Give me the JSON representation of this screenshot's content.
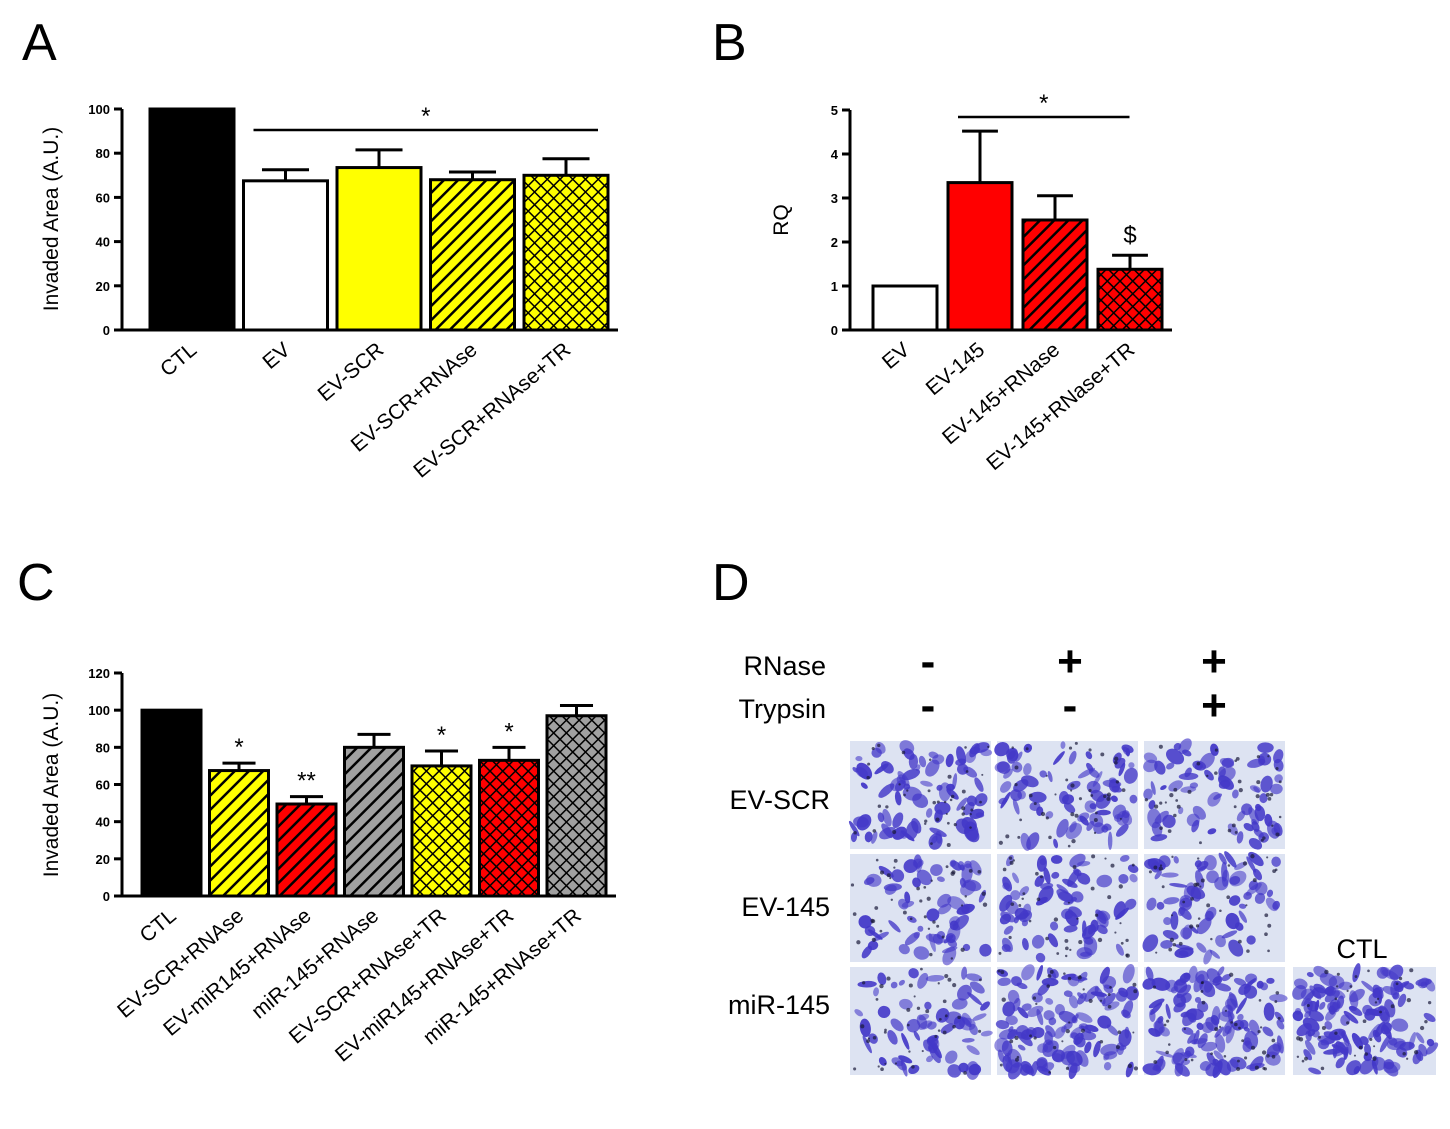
{
  "panel_letters": [
    "A",
    "B",
    "C",
    "D"
  ],
  "chart_data": [
    {
      "panel": "A",
      "type": "bar",
      "ylabel": "Invaded Area (A.U.)",
      "ylim": [
        0,
        100
      ],
      "yticks": [
        0,
        20,
        40,
        60,
        80,
        100
      ],
      "categories": [
        "CTL",
        "EV",
        "EV-SCR",
        "EV-SCR+RNAse",
        "EV-SCR+RNAse+TR"
      ],
      "values": [
        100,
        67.5,
        73.5,
        68,
        70
      ],
      "errors": [
        0,
        5,
        8,
        3.5,
        7.5
      ],
      "colors": [
        "#000000",
        "#ffffff",
        "#ffff00",
        "#ffff00",
        "#ffff00"
      ],
      "patterns": [
        "solid",
        "solid",
        "solid",
        "diag",
        "cross"
      ],
      "annotations": [
        {
          "text": "*",
          "kind": "bracket",
          "from": 1,
          "to": 4
        }
      ]
    },
    {
      "panel": "B",
      "type": "bar",
      "ylabel": "RQ",
      "ylim": [
        0,
        5
      ],
      "yticks": [
        0,
        1,
        2,
        3,
        4,
        5
      ],
      "categories": [
        "EV",
        "EV-145",
        "EV-145+RNase",
        "EV-145+RNase+TR"
      ],
      "values": [
        1,
        3.35,
        2.5,
        1.38
      ],
      "errors": [
        0,
        1.17,
        0.55,
        0.32
      ],
      "colors": [
        "#ffffff",
        "#ff0000",
        "#ff0000",
        "#ff0000"
      ],
      "patterns": [
        "solid",
        "solid",
        "diag",
        "cross"
      ],
      "annotations": [
        {
          "text": "*",
          "kind": "bracket",
          "from": 1,
          "to": 2.7
        },
        {
          "text": "$",
          "kind": "above",
          "index": 3
        }
      ]
    },
    {
      "panel": "C",
      "type": "bar",
      "ylabel": "Invaded Area (A.U.)",
      "ylim": [
        0,
        120
      ],
      "yticks": [
        0,
        20,
        40,
        60,
        80,
        100,
        120
      ],
      "categories": [
        "CTL",
        "EV-SCR+RNAse",
        "EV-miR145+RNAse",
        "miR-145+RNAse",
        "EV-SCR+RNAse+TR",
        "EV-miR145+RNAse+TR",
        "miR-145+RNAse+TR"
      ],
      "values": [
        100,
        67.5,
        49.5,
        80,
        70,
        73,
        97
      ],
      "errors": [
        0,
        4,
        4,
        7,
        8,
        7,
        5.5
      ],
      "colors": [
        "#000000",
        "#ffff00",
        "#ff0000",
        "#a0a0a0",
        "#ffff00",
        "#ff0000",
        "#a0a0a0"
      ],
      "patterns": [
        "solid",
        "diag",
        "diag",
        "diag",
        "cross",
        "cross",
        "cross"
      ],
      "annotations": [
        {
          "text": "*",
          "kind": "above",
          "index": 1
        },
        {
          "text": "**",
          "kind": "above",
          "index": 2
        },
        {
          "text": "*",
          "kind": "above",
          "index": 4
        },
        {
          "text": "*",
          "kind": "above",
          "index": 5
        }
      ]
    }
  ],
  "panel_d": {
    "row_header_labels": [
      "RNase",
      "Trypsin"
    ],
    "rnase_signs": [
      "-",
      "+",
      "+"
    ],
    "trypsin_signs": [
      "-",
      "-",
      "+"
    ],
    "row_labels": [
      "EV-SCR",
      "EV-145",
      "miR-145"
    ],
    "ctl_label": "CTL",
    "stain_color": "#4338c8"
  }
}
